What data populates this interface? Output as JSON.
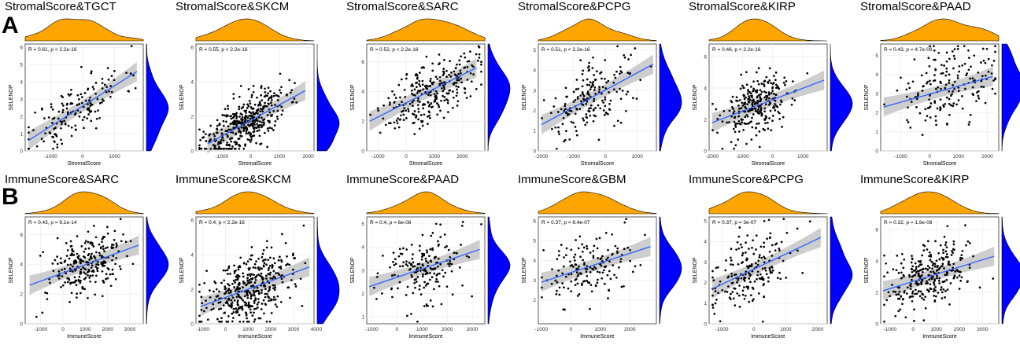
{
  "row_labels": [
    "A",
    "B"
  ],
  "colors": {
    "top_density": "#FFA500",
    "side_density": "#0000FF",
    "points": "#000000",
    "fit_line": "#3366FF",
    "ci_band": "#BDBDBD",
    "panel_bg": "#FFFFFF",
    "grid": "#EBEBEB"
  },
  "chart_data": [
    {
      "type": "scatter",
      "title": "StromalScore&TGCT",
      "xlabel": "StromalScore",
      "ylabel": "SELENOP",
      "annotation": "R = 0.61, p < 2.2e-16",
      "xlim": [
        -1800,
        1900
      ],
      "ylim": [
        0,
        6.2
      ],
      "xticks": [
        -1000,
        0,
        1000
      ],
      "yticks": [
        0,
        1,
        2,
        3,
        4,
        5,
        6
      ],
      "fit": {
        "x": [
          -1700,
          1700
        ],
        "y": [
          0.6,
          4.6
        ]
      },
      "n": 160,
      "spread": 0.85,
      "xcenter": -200,
      "xsd": 750,
      "seed": 11
    },
    {
      "type": "scatter",
      "title": "StromalScore&SKCM",
      "xlabel": "StromalScore",
      "ylabel": "SELENOP",
      "annotation": "R = 0.55, p < 2.2e-16",
      "xlim": [
        -1900,
        2200
      ],
      "ylim": [
        0,
        6.2
      ],
      "xticks": [
        -1000,
        0,
        1000,
        2000
      ],
      "yticks": [
        0,
        2,
        4,
        6
      ],
      "fit": {
        "x": [
          -1500,
          1900
        ],
        "y": [
          0.4,
          3.5
        ]
      },
      "n": 420,
      "spread": 0.75,
      "xcenter": -300,
      "xsd": 750,
      "seed": 23
    },
    {
      "type": "scatter",
      "title": "StromalScore&SARC",
      "xlabel": "StromalScore",
      "ylabel": "SELENOP",
      "annotation": "R = 0.52, p < 2.2e-16",
      "xlim": [
        -1400,
        2800
      ],
      "ylim": [
        0,
        7.2
      ],
      "xticks": [
        -1000,
        0,
        1000,
        2000
      ],
      "yticks": [
        0,
        2,
        4,
        6
      ],
      "fit": {
        "x": [
          -1300,
          2500
        ],
        "y": [
          2.0,
          5.6
        ]
      },
      "n": 280,
      "spread": 1.0,
      "xcenter": 900,
      "xsd": 800,
      "seed": 37
    },
    {
      "type": "scatter",
      "title": "StromalScore&PCPG",
      "xlabel": "StromalScore",
      "ylabel": "SELENOP",
      "annotation": "R = 0.51, p < 2.2e-16",
      "xlim": [
        -2100,
        1600
      ],
      "ylim": [
        0,
        5.3
      ],
      "xticks": [
        -2000,
        -1000,
        0,
        1000
      ],
      "yticks": [
        0,
        1,
        2,
        3,
        4,
        5
      ],
      "fit": {
        "x": [
          -2000,
          1500
        ],
        "y": [
          1.3,
          4.3
        ]
      },
      "n": 190,
      "spread": 0.8,
      "xcenter": -400,
      "xsd": 700,
      "seed": 41
    },
    {
      "type": "scatter",
      "title": "StromalScore&KIRP",
      "xlabel": "StromalScore",
      "ylabel": "SELENOP",
      "annotation": "R = 0.46, p < 2.2e-16",
      "xlim": [
        -2100,
        1800
      ],
      "ylim": [
        0,
        6.8
      ],
      "xticks": [
        -2000,
        -1000,
        0,
        1000
      ],
      "yticks": [
        0,
        2,
        4,
        6
      ],
      "fit": {
        "x": [
          -2000,
          1700
        ],
        "y": [
          1.8,
          4.5
        ]
      },
      "n": 280,
      "spread": 0.95,
      "xcenter": -500,
      "xsd": 600,
      "seed": 53
    },
    {
      "type": "scatter",
      "title": "StromalScore&PAAD",
      "xlabel": "StromalScore",
      "ylabel": "SELENOP",
      "annotation": "R = 0.43, p = 4.7e-09",
      "xlim": [
        -1700,
        2400
      ],
      "ylim": [
        0,
        5.6
      ],
      "xticks": [
        -1000,
        0,
        1000,
        2000
      ],
      "yticks": [
        0,
        1,
        2,
        3,
        4,
        5
      ],
      "fit": {
        "x": [
          -1600,
          2200
        ],
        "y": [
          2.3,
          3.9
        ]
      },
      "n": 180,
      "spread": 1.0,
      "xcenter": 600,
      "xsd": 800,
      "seed": 67
    },
    {
      "type": "scatter",
      "title": "ImmuneScore&SARC",
      "xlabel": "ImmuneScore",
      "ylabel": "SELENOP",
      "annotation": "R = 0.43, p = 9.1e-14",
      "xlim": [
        -1700,
        3600
      ],
      "ylim": [
        0,
        7.2
      ],
      "xticks": [
        -1000,
        0,
        1000,
        2000,
        3000
      ],
      "yticks": [
        0,
        2,
        4,
        6
      ],
      "fit": {
        "x": [
          -1500,
          3400
        ],
        "y": [
          2.6,
          5.3
        ]
      },
      "n": 260,
      "spread": 1.05,
      "xcenter": 1100,
      "xsd": 950,
      "seed": 71
    },
    {
      "type": "scatter",
      "title": "ImmuneScore&SKCM",
      "xlabel": "ImmuneScore",
      "ylabel": "SELENOP",
      "annotation": "R = 0.4, p < 2.2e-16",
      "xlim": [
        -1300,
        3900
      ],
      "ylim": [
        0,
        6.2
      ],
      "xticks": [
        -1000,
        0,
        1000,
        2000,
        3000,
        4000
      ],
      "yticks": [
        0,
        2,
        4,
        6
      ],
      "fit": {
        "x": [
          -1100,
          3700
        ],
        "y": [
          1.0,
          3.3
        ]
      },
      "n": 420,
      "spread": 1.0,
      "xcenter": 1000,
      "xsd": 1000,
      "seed": 83
    },
    {
      "type": "scatter",
      "title": "ImmuneScore&PAAD",
      "xlabel": "ImmuneScore",
      "ylabel": "SELENOP",
      "annotation": "R = 0.4, p = 6e-08",
      "xlim": [
        -1200,
        3500
      ],
      "ylim": [
        0.7,
        5.3
      ],
      "xticks": [
        -1000,
        0,
        1000,
        2000,
        3000
      ],
      "yticks": [
        1,
        2,
        3,
        4,
        5
      ],
      "fit": {
        "x": [
          -1100,
          3300
        ],
        "y": [
          2.3,
          3.9
        ]
      },
      "n": 180,
      "spread": 0.8,
      "xcenter": 900,
      "xsd": 850,
      "seed": 97
    },
    {
      "type": "scatter",
      "title": "ImmuneScore&GBM",
      "xlabel": "ImmuneScore",
      "ylabel": "SELENOP",
      "annotation": "R = 0.37, p = 8.4e-07",
      "xlim": [
        -1100,
        2900
      ],
      "ylim": [
        0.8,
        6.2
      ],
      "xticks": [
        -1000,
        0,
        1000,
        2000
      ],
      "yticks": [
        2,
        3,
        4,
        5,
        6
      ],
      "fit": {
        "x": [
          -1000,
          2700
        ],
        "y": [
          2.9,
          4.7
        ]
      },
      "n": 160,
      "spread": 0.8,
      "xcenter": 600,
      "xsd": 750,
      "seed": 101
    },
    {
      "type": "scatter",
      "title": "ImmuneScore&PCPG",
      "xlabel": "ImmuneScore",
      "ylabel": "SELENOP",
      "annotation": "R = 0.37, p = 3e-07",
      "xlim": [
        -1400,
        2300
      ],
      "ylim": [
        0,
        5.2
      ],
      "xticks": [
        -1000,
        0,
        1000,
        2000
      ],
      "yticks": [
        0,
        1,
        2,
        3,
        4,
        5
      ],
      "fit": {
        "x": [
          -1300,
          2100
        ],
        "y": [
          1.7,
          4.2
        ]
      },
      "n": 190,
      "spread": 0.85,
      "xcenter": -100,
      "xsd": 650,
      "seed": 113
    },
    {
      "type": "scatter",
      "title": "ImmuneScore&KIRP",
      "xlabel": "ImmuneScore",
      "ylabel": "SELENOP",
      "annotation": "R = 0.32, p = 1.9e-08",
      "xlim": [
        -1400,
        3700
      ],
      "ylim": [
        0,
        6.8
      ],
      "xticks": [
        -1000,
        0,
        1000,
        2000,
        3000
      ],
      "yticks": [
        0,
        2,
        4,
        6
      ],
      "fit": {
        "x": [
          -1300,
          3500
        ],
        "y": [
          2.1,
          4.3
        ]
      },
      "n": 290,
      "spread": 1.0,
      "xcenter": 700,
      "xsd": 900,
      "seed": 127
    }
  ]
}
